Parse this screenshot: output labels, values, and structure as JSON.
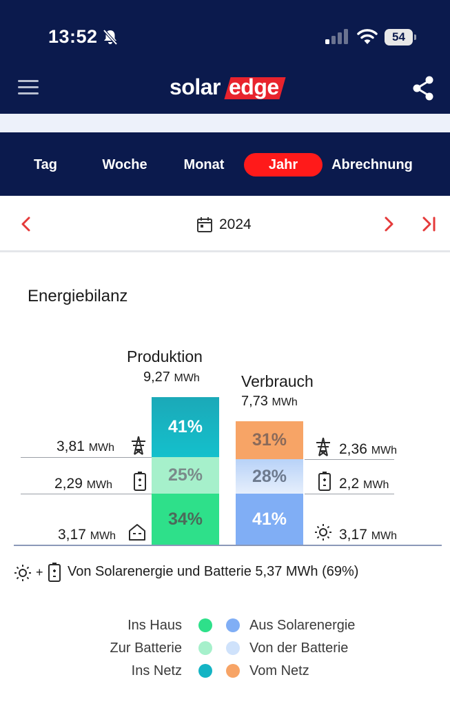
{
  "status_bar": {
    "time": "13:52",
    "battery": "54"
  },
  "header": {
    "logo_solar": "solar",
    "logo_edge": "edge"
  },
  "tabs": [
    {
      "label": "Tag",
      "active": false
    },
    {
      "label": "Woche",
      "active": false
    },
    {
      "label": "Monat",
      "active": false
    },
    {
      "label": "Jahr",
      "active": true
    },
    {
      "label": "Abrechnung",
      "active": false
    }
  ],
  "date_nav": {
    "year": "2024"
  },
  "energy_balance": {
    "title": "Energiebilanz",
    "production": {
      "title": "Produktion",
      "total": "9,27",
      "unit": "MWh",
      "segments": [
        {
          "name": "Ins Netz",
          "percent": "41%",
          "value": "3,81",
          "icon": "grid-tower-icon",
          "color": "#14b4c4"
        },
        {
          "name": "Zur Batterie",
          "percent": "25%",
          "value": "2,29",
          "icon": "battery-icon",
          "color": "#a6f0cb"
        },
        {
          "name": "Ins Haus",
          "percent": "34%",
          "value": "3,17",
          "icon": "house-icon",
          "color": "#2ee08a"
        }
      ]
    },
    "consumption": {
      "title": "Verbrauch",
      "total": "7,73",
      "unit": "MWh",
      "segments": [
        {
          "name": "Vom Netz",
          "percent": "31%",
          "value": "2,36",
          "icon": "grid-tower-icon",
          "color": "#f7a466"
        },
        {
          "name": "Von der Batterie",
          "percent": "28%",
          "value": "2,2",
          "icon": "battery-icon",
          "color": "#cfe2fb"
        },
        {
          "name": "Aus Solarenergie",
          "percent": "41%",
          "value": "3,17",
          "icon": "sun-icon",
          "color": "#80aef5"
        }
      ]
    },
    "summary": {
      "plus": "+",
      "text": "Von Solarenergie und Batterie 5,37 MWh (69%)"
    }
  },
  "legend": {
    "left": [
      {
        "label": "Ins Haus",
        "color": "#2ee08a"
      },
      {
        "label": "Zur Batterie",
        "color": "#a6f0cb"
      },
      {
        "label": "Ins Netz",
        "color": "#14b4c4"
      }
    ],
    "right": [
      {
        "label": "Aus Solarenergie",
        "color": "#80aef5"
      },
      {
        "label": "Von der Batterie",
        "color": "#cfe2fb"
      },
      {
        "label": "Vom Netz",
        "color": "#f7a466"
      }
    ]
  }
}
